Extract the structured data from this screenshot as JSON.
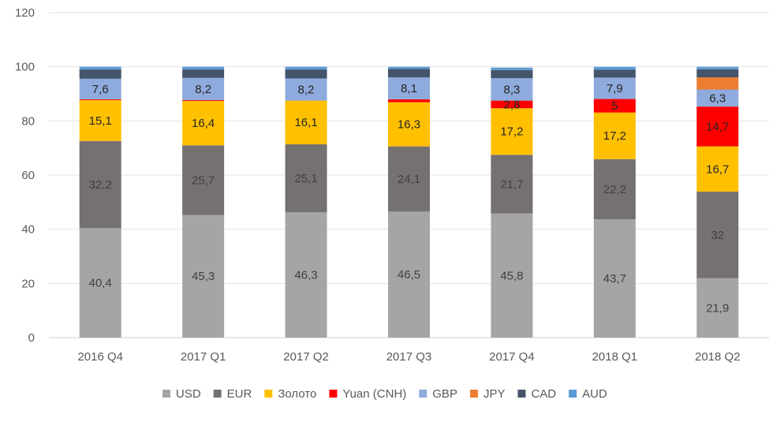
{
  "chart_data": {
    "type": "bar",
    "stacked": true,
    "title": "",
    "xlabel": "",
    "ylabel": "",
    "ylim": [
      0,
      120
    ],
    "yticks": [
      0,
      20,
      40,
      60,
      80,
      100,
      120
    ],
    "categories": [
      "2016 Q4",
      "2017 Q1",
      "2017 Q2",
      "2017 Q3",
      "2017 Q4",
      "2018 Q1",
      "2018 Q2"
    ],
    "legend_position": "bottom",
    "series": [
      {
        "name": "USD",
        "color": "#a5a5a5",
        "label_color": "#404040",
        "values": [
          40.4,
          45.3,
          46.3,
          46.5,
          45.8,
          43.7,
          21.9
        ],
        "labels": [
          "40,4",
          "45,3",
          "46,3",
          "46,5",
          "45,8",
          "43,7",
          "21,9"
        ]
      },
      {
        "name": "EUR",
        "color": "#767171",
        "label_color": "#404040",
        "values": [
          32.2,
          25.7,
          25.1,
          24.1,
          21.7,
          22.2,
          32
        ],
        "labels": [
          "32,2",
          "25,7",
          "25,1",
          "24,1",
          "21,7",
          "22,2",
          "32"
        ]
      },
      {
        "name": "Золото",
        "color": "#ffc000",
        "label_color": "#262626",
        "values": [
          15.1,
          16.4,
          16.1,
          16.3,
          17.2,
          17.2,
          16.7
        ],
        "labels": [
          "15,1",
          "16,4",
          "16,1",
          "16,3",
          "17,2",
          "17,2",
          "16,7"
        ]
      },
      {
        "name": "Yuan (CNH)",
        "color": "#ff0000",
        "label_color": "#262626",
        "values": [
          0.3,
          0.3,
          0,
          1.1,
          2.8,
          5,
          14.7
        ],
        "labels": [
          "",
          "",
          "",
          "",
          "2,8",
          "5",
          "14,7"
        ]
      },
      {
        "name": "GBP",
        "color": "#8faadc",
        "label_color": "#262626",
        "values": [
          7.6,
          8.2,
          8.2,
          8.1,
          8.3,
          7.9,
          6.3
        ],
        "labels": [
          "7,6",
          "8,2",
          "8,2",
          "8,1",
          "8,3",
          "7,9",
          "6,3"
        ]
      },
      {
        "name": "JPY",
        "color": "#ed7d31",
        "label_color": "#262626",
        "values": [
          0,
          0,
          0,
          0,
          0,
          0,
          4.5
        ],
        "labels": [
          "",
          "",
          "",
          "",
          "",
          "",
          ""
        ]
      },
      {
        "name": "CAD",
        "color": "#44546a",
        "label_color": "#262626",
        "values": [
          3.4,
          3.1,
          3.3,
          3.1,
          3.0,
          2.9,
          3.0
        ],
        "labels": [
          "",
          "",
          "",
          "",
          "",
          "",
          ""
        ]
      },
      {
        "name": "AUD",
        "color": "#5b9bd5",
        "label_color": "#262626",
        "values": [
          1.0,
          1.0,
          1.0,
          0.8,
          0.9,
          1.1,
          0.9
        ],
        "labels": [
          "",
          "",
          "",
          "",
          "",
          "",
          ""
        ]
      }
    ]
  }
}
